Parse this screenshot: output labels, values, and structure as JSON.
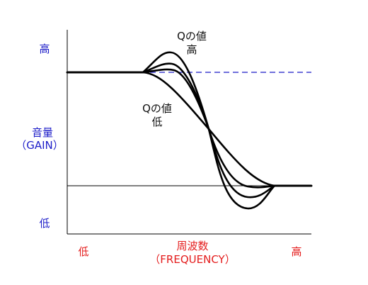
{
  "y_axis": {
    "high": "高",
    "label_line1": "音量",
    "label_line2": "（GAIN）",
    "low": "低",
    "color": "#1c1cc8"
  },
  "x_axis": {
    "low": "低",
    "label_line1": "周波数",
    "label_line2": "（FREQUENCY）",
    "high": "高",
    "color": "#e41c1c"
  },
  "annotations": {
    "q_high_line1": "Qの値",
    "q_high_line2": "高",
    "q_low_line1": "Qの値",
    "q_low_line2": "低"
  },
  "colors": {
    "reference_dashed": "#1c1cc8",
    "curves": "#000000",
    "axes": "#000000"
  }
}
